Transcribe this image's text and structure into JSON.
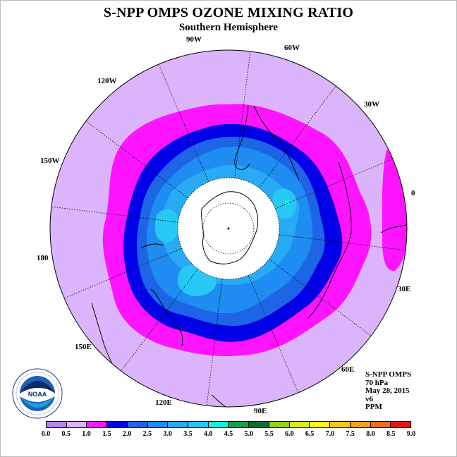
{
  "title": "S-NPP OMPS OZONE MIXING RATIO",
  "subtitle": "Southern Hemisphere",
  "longitude_labels": {
    "w90": "90W",
    "w60": "60W",
    "w30": "30W",
    "e0": "0",
    "w120": "120W",
    "w150": "150W",
    "e180": "180",
    "e30": "30E",
    "e60": "60E",
    "e90": "90E",
    "e120": "120E",
    "e150": "150E"
  },
  "info": {
    "instrument": "S-NPP OMPS",
    "level": "70 hPa",
    "date": "May 28, 2015",
    "version": "v6",
    "units": "PPM"
  },
  "logo": {
    "name": "NOAA",
    "ring_text": "NATIONAL OCEANIC AND ATMOSPHERIC ADMINISTRATION",
    "ring_text_bottom": "U.S. DEPARTMENT OF COMMERCE"
  },
  "colorbar": {
    "ticks": [
      "0.0",
      "0.5",
      "1.0",
      "1.5",
      "2.0",
      "2.5",
      "3.0",
      "3.5",
      "4.0",
      "4.5",
      "5.0",
      "5.5",
      "6.0",
      "6.5",
      "7.0",
      "7.5",
      "8.0",
      "8.5",
      "9.0"
    ],
    "colors": [
      "#b686ef",
      "#dcb4fc",
      "#ff14ff",
      "#0000e6",
      "#1e64e6",
      "#1e8cf0",
      "#28aaf5",
      "#28c8f5",
      "#14f0dc",
      "#14a050",
      "#0a6e32",
      "#96d214",
      "#dcf014",
      "#fffa14",
      "#fac814",
      "#f5a01e",
      "#f06e1e",
      "#e61414",
      "#8c5a3c"
    ]
  },
  "map_colors": {
    "background": "#dcb4fc",
    "band_1_0_1_5": "#ff14ff",
    "band_1_5_2_0": "#0000e6",
    "band_2_0_2_5": "#1e64e6",
    "band_2_5_3_0": "#1e8cf0",
    "band_3_0_3_5": "#28aaf5",
    "band_3_5_4_0": "#28c8f5",
    "band_4_0_4_5": "#14f0dc",
    "no_data": "#ffffff"
  }
}
